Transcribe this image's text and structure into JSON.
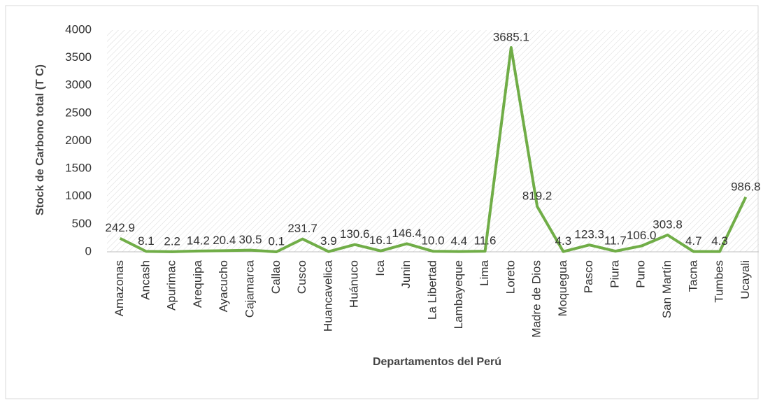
{
  "chart_data": {
    "type": "line",
    "x_label": "Departamentos del Perú",
    "y_label": "Stock de Carbono total (T C)",
    "categories": [
      "Amazonas",
      "Ancash",
      "Apurimac",
      "Arequipa",
      "Ayacucho",
      "Cajamarca",
      "Callao",
      "Cusco",
      "Huancavelica",
      "Huánuco",
      "Ica",
      "Junin",
      "La Libertad",
      "Lambayeque",
      "Lima",
      "Loreto",
      "Madre de Dios",
      "Moquegua",
      "Pasco",
      "Piura",
      "Puno",
      "San Martín",
      "Tacna",
      "Tumbes",
      "Ucayali"
    ],
    "values": [
      242.9,
      8.1,
      2.2,
      14.2,
      20.4,
      30.5,
      0.1,
      231.7,
      3.9,
      130.6,
      16.1,
      146.4,
      10.0,
      4.4,
      11.6,
      3685.1,
      819.2,
      4.3,
      123.3,
      11.7,
      106.0,
      303.8,
      4.7,
      4.3,
      986.8
    ],
    "value_labels": [
      "242.9",
      "8.1",
      "2.2",
      "14.2",
      "20.4",
      "30.5",
      "0.1",
      "231.7",
      "3.9",
      "130.6",
      "16.1",
      "146.4",
      "10.0",
      "4.4",
      "11.6",
      "3685.1",
      "819.2",
      "4.3",
      "123.3",
      "11.7",
      "106.0",
      "303.8",
      "4.7",
      "4.3",
      "986.8"
    ],
    "color": "#70ad47",
    "ylim": [
      0,
      4000
    ],
    "yticks": [
      0,
      500,
      1000,
      1500,
      2000,
      2500,
      3000,
      3500,
      4000
    ],
    "grid": true
  }
}
